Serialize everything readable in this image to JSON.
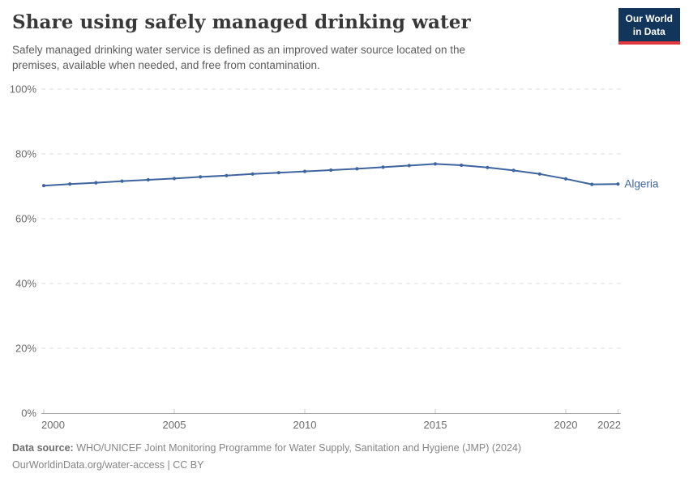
{
  "header": {
    "title": "Share using safely managed drinking water",
    "subtitle": "Safely managed drinking water service is defined as an improved water source located on the premises, available when needed, and free from contamination."
  },
  "logo": {
    "line1": "Our World",
    "line2": "in Data",
    "bg_color": "#12355b",
    "accent_color": "#e0373f"
  },
  "chart_data": {
    "type": "line",
    "title": "Share using safely managed drinking water",
    "entity_label": "Algeria",
    "x": [
      2000,
      2001,
      2002,
      2003,
      2004,
      2005,
      2006,
      2007,
      2008,
      2009,
      2010,
      2011,
      2012,
      2013,
      2014,
      2015,
      2016,
      2017,
      2018,
      2019,
      2020,
      2021,
      2022
    ],
    "series": [
      {
        "name": "Algeria",
        "color": "#3d649f",
        "values": [
          70.2,
          70.7,
          71.1,
          71.6,
          72.0,
          72.4,
          72.9,
          73.3,
          73.8,
          74.2,
          74.6,
          75.0,
          75.4,
          75.9,
          76.4,
          76.9,
          76.5,
          75.8,
          74.9,
          73.8,
          72.3,
          70.6,
          70.7
        ]
      }
    ],
    "ylim": [
      0,
      100
    ],
    "y_ticks": [
      {
        "value": 0,
        "label": "0%"
      },
      {
        "value": 20,
        "label": "20%"
      },
      {
        "value": 40,
        "label": "40%"
      },
      {
        "value": 60,
        "label": "60%"
      },
      {
        "value": 80,
        "label": "80%"
      },
      {
        "value": 100,
        "label": "100%"
      }
    ],
    "x_ticks": [
      2000,
      2005,
      2010,
      2015,
      2020,
      2022
    ],
    "grid": "dashed horizontal",
    "legend_position": "end-of-line label",
    "grid_color": "#dedede",
    "axis_color": "#a8a8a8",
    "tick_label_color": "#6b6b6b"
  },
  "footer": {
    "source_label": "Data source:",
    "source_text": " WHO/UNICEF Joint Monitoring Programme for Water Supply, Sanitation and Hygiene (JMP) (2024)",
    "license_line": "OurWorldinData.org/water-access | CC BY"
  }
}
